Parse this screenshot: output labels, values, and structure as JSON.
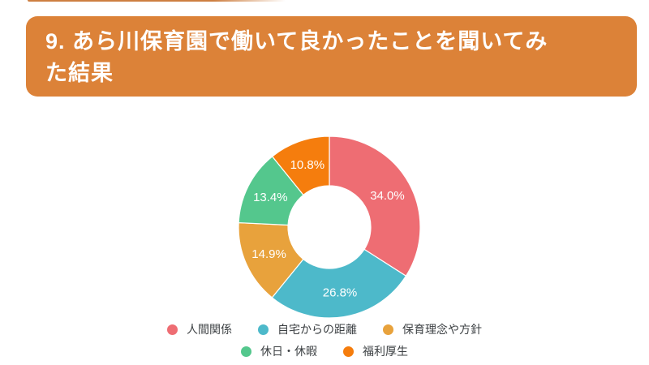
{
  "page": {
    "background": "#ffffff"
  },
  "header": {
    "background": "#dc8238",
    "text_color": "#ffffff",
    "title": "9. あら川保育園で働いて良かったことを聞いてみた結果",
    "title_lines": [
      "9. あら川保育園で働いて良かったことを聞いてみ",
      "た結果"
    ]
  },
  "decor": {
    "top_sliver_color": "#cd7f41"
  },
  "chart_data": {
    "type": "pie",
    "subtype": "donut",
    "title": "9. あら川保育園で働いて良かったことを聞いてみた結果",
    "labels": [
      "人間関係",
      "自宅からの距離",
      "保育理念や方針",
      "休日・休暇",
      "福利厚生"
    ],
    "values": [
      34.0,
      26.8,
      14.9,
      13.4,
      10.8
    ],
    "value_labels": [
      "34.0%",
      "26.8%",
      "14.9%",
      "13.4%",
      "10.8%"
    ],
    "colors": [
      "#ee6d73",
      "#4db9ca",
      "#e8a23c",
      "#54c78d",
      "#f57d0d"
    ],
    "start_angle_deg": 0,
    "direction": "clockwise",
    "inner_radius_ratio": 0.455,
    "label_color": "#ffffff",
    "segment_border_color": "#ffffff",
    "legend_position": "bottom",
    "legend_row_break": 3,
    "legend_text_color": "#3c4043"
  }
}
